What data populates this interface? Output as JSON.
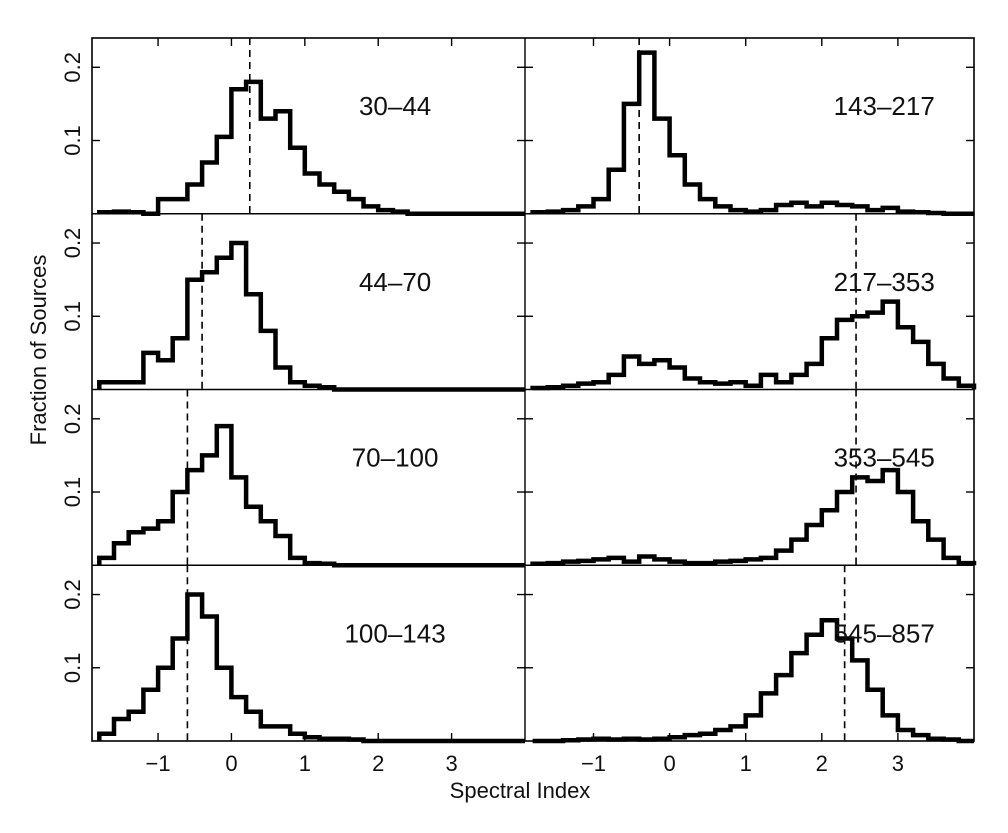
{
  "chart_data": {
    "type": "histogram",
    "xlabel": "Spectral Index",
    "ylabel": "Fraction of Sources",
    "xlim": [
      -1.9,
      4.0
    ],
    "ylim": [
      0,
      0.24
    ],
    "xticks": [
      "−1",
      "0",
      "1",
      "2",
      "3"
    ],
    "yticks": [
      "0.1",
      "0.2"
    ],
    "bin_edges": [
      -1.8,
      -1.6,
      -1.4,
      -1.2,
      -1.0,
      -0.8,
      -0.6,
      -0.4,
      -0.2,
      0.0,
      0.2,
      0.4,
      0.6,
      0.8,
      1.0,
      1.2,
      1.4,
      1.6,
      1.8,
      2.0,
      2.2,
      2.4,
      2.6,
      2.8,
      3.0,
      3.2,
      3.4,
      3.6,
      3.8,
      4.0
    ],
    "panels": [
      {
        "label": "30–44",
        "median": 0.25,
        "values": [
          0.002,
          0.003,
          0.002,
          0.0,
          0.02,
          0.02,
          0.04,
          0.07,
          0.105,
          0.17,
          0.18,
          0.13,
          0.14,
          0.09,
          0.055,
          0.04,
          0.03,
          0.02,
          0.01,
          0.005,
          0.003,
          0.0,
          0.0,
          0.0,
          0.0,
          0.0,
          0.0,
          0.0,
          0.0
        ]
      },
      {
        "label": "143–217",
        "median": -0.4,
        "values": [
          0.002,
          0.003,
          0.005,
          0.01,
          0.02,
          0.06,
          0.15,
          0.22,
          0.13,
          0.08,
          0.04,
          0.02,
          0.01,
          0.005,
          0.003,
          0.005,
          0.012,
          0.015,
          0.01,
          0.015,
          0.012,
          0.01,
          0.005,
          0.008,
          0.003,
          0.002,
          0.001,
          0.0,
          0.0
        ]
      },
      {
        "label": "44–70",
        "median": -0.4,
        "values": [
          0.01,
          0.01,
          0.01,
          0.05,
          0.04,
          0.07,
          0.15,
          0.16,
          0.18,
          0.2,
          0.13,
          0.08,
          0.03,
          0.01,
          0.005,
          0.003,
          0.0,
          0.0,
          0.0,
          0.0,
          0.0,
          0.0,
          0.0,
          0.0,
          0.0,
          0.0,
          0.0,
          0.0,
          0.0
        ]
      },
      {
        "label": "217–353",
        "median": 2.45,
        "values": [
          0.002,
          0.003,
          0.005,
          0.008,
          0.01,
          0.02,
          0.045,
          0.035,
          0.04,
          0.03,
          0.015,
          0.01,
          0.008,
          0.01,
          0.005,
          0.02,
          0.01,
          0.02,
          0.035,
          0.07,
          0.095,
          0.1,
          0.105,
          0.12,
          0.085,
          0.065,
          0.035,
          0.015,
          0.005
        ]
      },
      {
        "label": "70–100",
        "median": -0.6,
        "values": [
          0.01,
          0.03,
          0.045,
          0.05,
          0.06,
          0.1,
          0.13,
          0.15,
          0.19,
          0.12,
          0.08,
          0.06,
          0.04,
          0.01,
          0.003,
          0.002,
          0.0,
          0.0,
          0.0,
          0.0,
          0.0,
          0.0,
          0.0,
          0.0,
          0.0,
          0.0,
          0.0,
          0.0,
          0.0
        ]
      },
      {
        "label": "353–545",
        "median": 2.45,
        "values": [
          0.002,
          0.003,
          0.005,
          0.006,
          0.008,
          0.01,
          0.005,
          0.012,
          0.008,
          0.005,
          0.003,
          0.003,
          0.005,
          0.006,
          0.008,
          0.01,
          0.02,
          0.035,
          0.055,
          0.075,
          0.1,
          0.12,
          0.115,
          0.13,
          0.1,
          0.06,
          0.035,
          0.01,
          0.003
        ]
      },
      {
        "label": "100–143",
        "median": -0.6,
        "values": [
          0.01,
          0.03,
          0.04,
          0.07,
          0.1,
          0.14,
          0.2,
          0.17,
          0.1,
          0.06,
          0.04,
          0.02,
          0.02,
          0.01,
          0.005,
          0.003,
          0.003,
          0.002,
          0.0,
          0.0,
          0.0,
          0.0,
          0.0,
          0.0,
          0.0,
          0.0,
          0.0,
          0.0,
          0.0
        ]
      },
      {
        "label": "545–857",
        "median": 2.3,
        "values": [
          0.0,
          0.0,
          0.001,
          0.002,
          0.003,
          0.002,
          0.003,
          0.002,
          0.003,
          0.005,
          0.008,
          0.01,
          0.015,
          0.02,
          0.035,
          0.065,
          0.09,
          0.12,
          0.145,
          0.165,
          0.14,
          0.11,
          0.07,
          0.035,
          0.015,
          0.008,
          0.003,
          0.002,
          0.0
        ]
      }
    ]
  }
}
